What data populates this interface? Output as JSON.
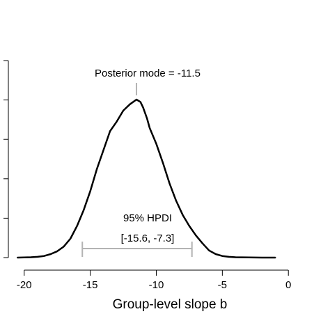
{
  "chart_data": {
    "type": "line",
    "title": "",
    "xlabel": "Group-level slope b",
    "ylabel": "",
    "xlim": [
      -21.2,
      0.2
    ],
    "ylim": [
      0,
      1
    ],
    "x_ticks": [
      -20,
      -15,
      -10,
      -5,
      0
    ],
    "x_tick_labels": [
      "-20",
      "-15",
      "-10",
      "-5",
      "0"
    ],
    "y_tick_count": 6,
    "grid": false,
    "legend": "none",
    "series": [
      {
        "x": [
          -20.5,
          -19.5,
          -19.0,
          -18.5,
          -18.0,
          -17.5,
          -17.0,
          -16.5,
          -16.0,
          -15.5,
          -15.0,
          -14.5,
          -14.0,
          -13.5,
          -13.0,
          -12.5,
          -12.0,
          -11.5,
          -11.2,
          -11.0,
          -10.7,
          -10.5,
          -10.0,
          -9.5,
          -9.0,
          -8.5,
          -8.0,
          -7.5,
          -7.0,
          -6.5,
          -6.0,
          -5.5,
          -5.0,
          -4.5,
          -4.0,
          -3.0,
          -2.0,
          -1.0
        ],
        "y": [
          0.0,
          0.002,
          0.005,
          0.01,
          0.022,
          0.04,
          0.07,
          0.12,
          0.2,
          0.3,
          0.42,
          0.56,
          0.68,
          0.8,
          0.86,
          0.93,
          0.97,
          1.0,
          0.985,
          0.95,
          0.88,
          0.82,
          0.72,
          0.6,
          0.47,
          0.36,
          0.27,
          0.2,
          0.14,
          0.09,
          0.045,
          0.022,
          0.01,
          0.005,
          0.002,
          0.001,
          0.0,
          0.0
        ]
      }
    ],
    "annotations": {
      "mode_label": "Posterior mode = -11.5",
      "mode_x": -11.5,
      "hpdi_label": "95% HPDI",
      "hpdi_range_label": "[-15.6, -7.3]",
      "hpdi_low": -15.6,
      "hpdi_high": -7.3
    },
    "colors": {
      "curve": "#000000",
      "annotation_lines": "#b3b3b3",
      "axes": "#000000"
    }
  }
}
